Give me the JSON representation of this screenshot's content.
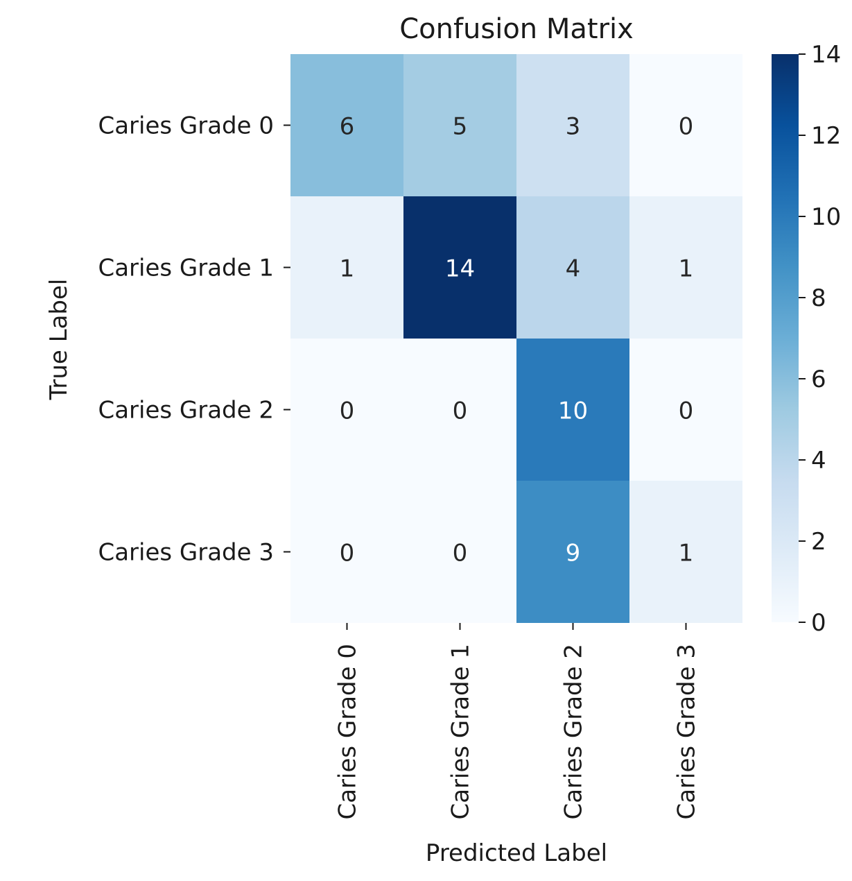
{
  "chart_data": {
    "type": "heatmap",
    "title": "Confusion Matrix",
    "xlabel": "Predicted Label",
    "ylabel": "True Label",
    "x_categories": [
      "Caries Grade 0",
      "Caries Grade 1",
      "Caries Grade 2",
      "Caries Grade 3"
    ],
    "y_categories": [
      "Caries Grade 0",
      "Caries Grade 1",
      "Caries Grade 2",
      "Caries Grade 3"
    ],
    "values": [
      [
        6,
        5,
        3,
        0
      ],
      [
        1,
        14,
        4,
        1
      ],
      [
        0,
        0,
        10,
        0
      ],
      [
        0,
        0,
        9,
        1
      ]
    ],
    "colormap": "Blues",
    "vmin": 0,
    "vmax": 14,
    "colorbar_ticks": [
      0,
      2,
      4,
      6,
      8,
      10,
      12,
      14
    ],
    "annotations": true,
    "grid": false
  }
}
